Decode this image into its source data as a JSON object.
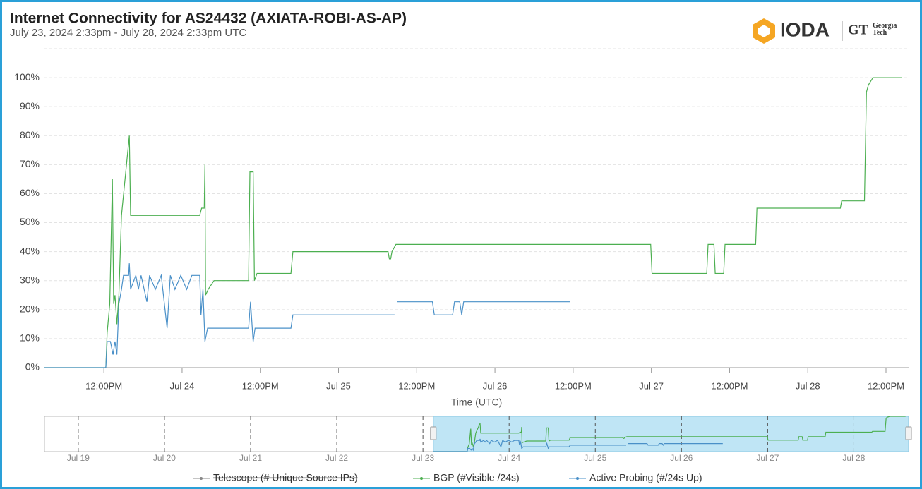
{
  "chart_data": {
    "type": "line",
    "title": "Internet Connectivity for AS24432 (AXIATA-ROBI-AS-AP)",
    "subtitle": "July 23, 2024 2:33pm - July 28, 2024 2:33pm UTC",
    "x_label": "Time (UTC)",
    "logo": {
      "name": "IODA",
      "partner_mark": "GT",
      "partner": "Georgia Tech"
    },
    "xlim": [
      "2024-07-23T02:53",
      "2024-07-28T15:28"
    ],
    "xticks": [
      {
        "value": "2024-07-23T12:00",
        "label": "12:00PM"
      },
      {
        "value": "2024-07-24T00:00",
        "label": "Jul 24"
      },
      {
        "value": "2024-07-24T12:00",
        "label": "12:00PM"
      },
      {
        "value": "2024-07-25T00:00",
        "label": "Jul 25"
      },
      {
        "value": "2024-07-25T12:00",
        "label": "12:00PM"
      },
      {
        "value": "2024-07-26T00:00",
        "label": "Jul 26"
      },
      {
        "value": "2024-07-26T12:00",
        "label": "12:00PM"
      },
      {
        "value": "2024-07-27T00:00",
        "label": "Jul 27"
      },
      {
        "value": "2024-07-27T12:00",
        "label": "12:00PM"
      },
      {
        "value": "2024-07-28T00:00",
        "label": "Jul 28"
      },
      {
        "value": "2024-07-28T12:00",
        "label": "12:00PM"
      }
    ],
    "ylim": [
      0,
      110
    ],
    "yticks": [
      {
        "value": 0,
        "label": "0%"
      },
      {
        "value": 10,
        "label": "10%"
      },
      {
        "value": 20,
        "label": "20%"
      },
      {
        "value": 30,
        "label": "30%"
      },
      {
        "value": 40,
        "label": "40%"
      },
      {
        "value": 50,
        "label": "50%"
      },
      {
        "value": 60,
        "label": "60%"
      },
      {
        "value": 70,
        "label": "70%"
      },
      {
        "value": 80,
        "label": "80%"
      },
      {
        "value": 90,
        "label": "90%"
      },
      {
        "value": 100,
        "label": "100%"
      }
    ],
    "grid": true,
    "series": [
      {
        "name": "Telescope (# Unique Source IPs)",
        "color": "#555555",
        "hidden": true,
        "x": [],
        "values": []
      },
      {
        "name": "BGP (#Visible /24s)",
        "color": "#4caf50",
        "x": [
          "2024-07-23T02:53",
          "2024-07-23T12:18",
          "2024-07-23T12:30",
          "2024-07-23T12:54",
          "2024-07-23T13:18",
          "2024-07-23T13:30",
          "2024-07-23T13:42",
          "2024-07-23T14:00",
          "2024-07-23T14:18",
          "2024-07-23T14:42",
          "2024-07-23T15:54",
          "2024-07-23T16:06",
          "2024-07-24T02:42",
          "2024-07-24T03:00",
          "2024-07-24T03:24",
          "2024-07-24T03:30",
          "2024-07-24T03:36",
          "2024-07-24T04:00",
          "2024-07-24T04:54",
          "2024-07-24T10:12",
          "2024-07-24T10:24",
          "2024-07-24T10:54",
          "2024-07-24T11:06",
          "2024-07-24T11:30",
          "2024-07-24T16:42",
          "2024-07-24T17:00",
          "2024-07-25T07:36",
          "2024-07-25T07:48",
          "2024-07-25T08:00",
          "2024-07-25T08:12",
          "2024-07-25T08:48",
          "2024-07-26T23:54",
          "2024-07-27T00:06",
          "2024-07-27T08:30",
          "2024-07-27T08:42",
          "2024-07-27T09:36",
          "2024-07-27T09:48",
          "2024-07-27T11:06",
          "2024-07-27T11:18",
          "2024-07-27T16:00",
          "2024-07-27T16:12",
          "2024-07-28T05:00",
          "2024-07-28T05:12",
          "2024-07-28T08:42",
          "2024-07-28T09:00",
          "2024-07-28T09:18",
          "2024-07-28T10:00",
          "2024-07-28T14:24"
        ],
        "values": [
          0,
          0,
          12,
          22,
          65,
          22,
          25,
          15,
          25,
          52.5,
          80,
          52.5,
          52.5,
          55,
          55,
          70,
          25,
          27,
          30,
          30,
          67.5,
          67.5,
          30,
          32.5,
          32.5,
          40,
          40,
          37.5,
          37.5,
          40,
          42.5,
          42.5,
          32.5,
          32.5,
          42.5,
          42.5,
          32.5,
          32.5,
          42.5,
          42.5,
          55,
          55,
          57.5,
          57.5,
          95,
          97.5,
          100,
          100
        ]
      },
      {
        "name": "Active Probing (#/24s Up)",
        "color": "#4a90c8",
        "x": [
          "2024-07-23T02:53",
          "2024-07-23T12:18",
          "2024-07-23T12:30",
          "2024-07-23T13:00",
          "2024-07-23T13:24",
          "2024-07-23T13:42",
          "2024-07-23T14:00",
          "2024-07-23T14:18",
          "2024-07-23T14:42",
          "2024-07-23T15:00",
          "2024-07-23T15:48",
          "2024-07-23T15:54",
          "2024-07-23T16:06",
          "2024-07-23T16:54",
          "2024-07-23T17:18",
          "2024-07-23T17:42",
          "2024-07-23T18:36",
          "2024-07-23T19:00",
          "2024-07-23T19:54",
          "2024-07-23T20:48",
          "2024-07-23T21:42",
          "2024-07-23T22:12",
          "2024-07-23T22:54",
          "2024-07-23T23:48",
          "2024-07-24T00:42",
          "2024-07-24T01:30",
          "2024-07-24T02:42",
          "2024-07-24T02:54",
          "2024-07-24T03:12",
          "2024-07-24T03:30",
          "2024-07-24T03:54",
          "2024-07-24T10:12",
          "2024-07-24T10:30",
          "2024-07-24T10:54",
          "2024-07-24T11:12",
          "2024-07-24T16:42",
          "2024-07-24T17:00",
          "2024-07-25T08:36",
          "2024-07-25T08:42",
          "2024-07-25T09:00",
          "2024-07-25T14:24",
          "2024-07-25T14:42",
          "2024-07-25T17:30",
          "2024-07-25T17:48",
          "2024-07-25T18:36",
          "2024-07-25T18:54",
          "2024-07-25T19:12",
          "2024-07-26T11:30"
        ],
        "values": [
          0,
          0,
          9,
          9,
          4.5,
          9,
          4.5,
          22,
          27,
          31.8,
          31.8,
          36,
          27,
          31.8,
          27,
          31.8,
          22.7,
          31.8,
          27,
          31.8,
          13.6,
          31.8,
          27,
          31.8,
          27,
          31.8,
          31.8,
          18.2,
          27,
          9,
          13.6,
          13.6,
          22.7,
          9,
          13.6,
          13.6,
          18.2,
          18.2,
          null,
          22.7,
          22.7,
          18.2,
          18.2,
          22.7,
          22.7,
          18.2,
          22.7,
          22.7
        ]
      }
    ],
    "navigator": {
      "xlim": [
        "2024-07-18T14:35",
        "2024-07-28T15:15"
      ],
      "ylim": [
        0,
        100
      ],
      "xticks": [
        {
          "value": "2024-07-19T00:00",
          "label": "Jul 19"
        },
        {
          "value": "2024-07-20T00:00",
          "label": "Jul 20"
        },
        {
          "value": "2024-07-21T00:00",
          "label": "Jul 21"
        },
        {
          "value": "2024-07-22T00:00",
          "label": "Jul 22"
        },
        {
          "value": "2024-07-23T00:00",
          "label": "Jul 23"
        },
        {
          "value": "2024-07-24T00:00",
          "label": "Jul 24"
        },
        {
          "value": "2024-07-25T00:00",
          "label": "Jul 25"
        },
        {
          "value": "2024-07-26T00:00",
          "label": "Jul 26"
        },
        {
          "value": "2024-07-27T00:00",
          "label": "Jul 27"
        },
        {
          "value": "2024-07-28T00:00",
          "label": "Jul 28"
        }
      ],
      "selection": [
        "2024-07-23T02:53",
        "2024-07-28T15:15"
      ]
    }
  }
}
